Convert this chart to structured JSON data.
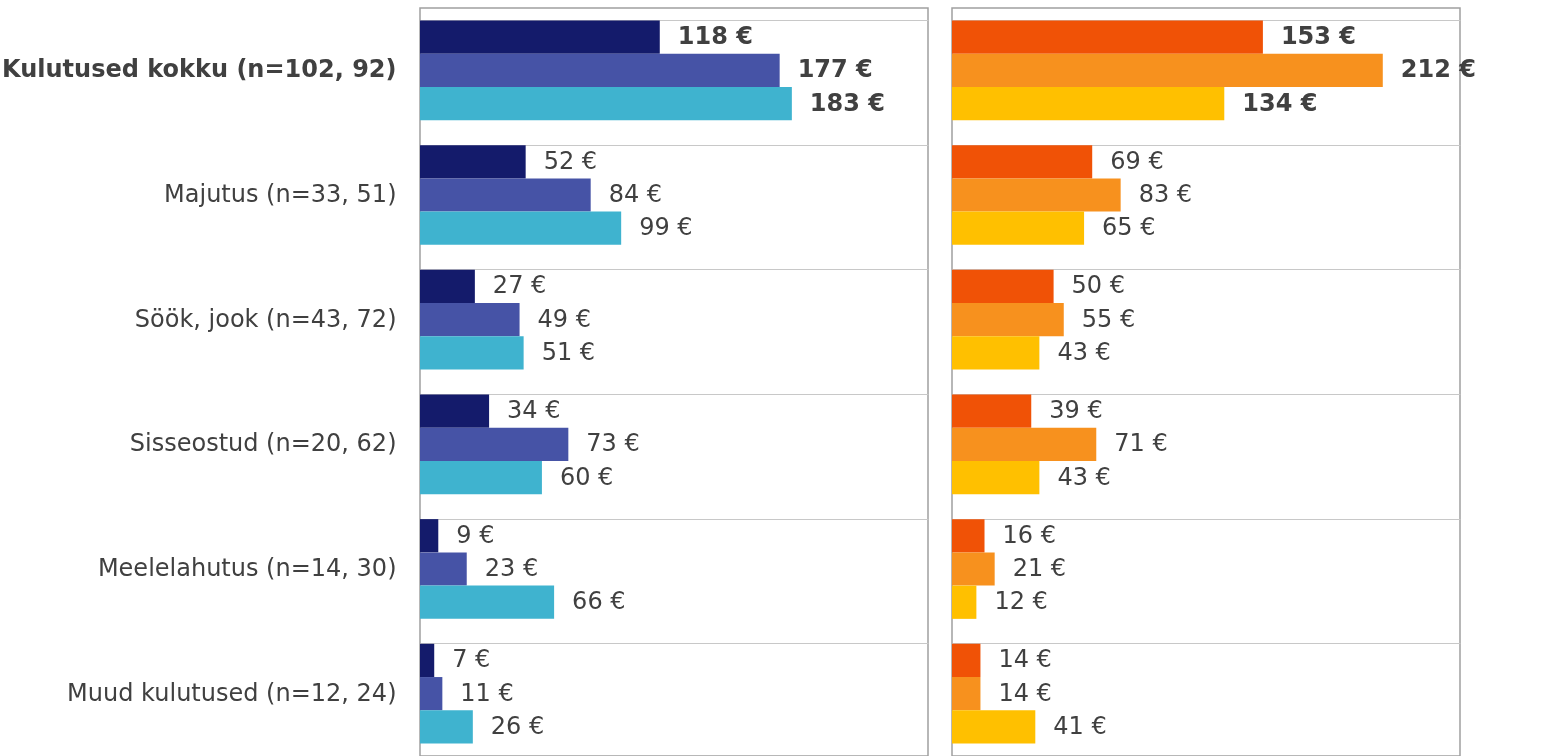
{
  "chart_data": [
    {
      "type": "bar",
      "orientation": "horizontal",
      "categories": [
        "Kulutused kokku (n=102, 92)",
        "Majutus (n=33, 51)",
        "Söök, jook (n=43, 72)",
        "Sisseostud (n=20, 62)",
        "Meelelahutus (n=14, 30)",
        "Muud kulutused (n=12, 24)"
      ],
      "xlim": [
        0,
        250
      ],
      "tick_labels": "y",
      "grid": "y",
      "legend": false,
      "series": [
        {
          "color": "#141b6b",
          "values": [
            118,
            52,
            27,
            34,
            9,
            7
          ],
          "value_labels": [
            "118 €",
            "52 €",
            "27 €",
            "34 €",
            "9 €",
            "7 €"
          ]
        },
        {
          "color": "#4653a6",
          "values": [
            177,
            84,
            49,
            73,
            23,
            11
          ],
          "value_labels": [
            "177 €",
            "84 €",
            "49 €",
            "73 €",
            "23 €",
            "11 €"
          ]
        },
        {
          "color": "#3fb3cf",
          "values": [
            183,
            99,
            51,
            60,
            66,
            26
          ],
          "value_labels": [
            "183 €",
            "99 €",
            "51 €",
            "60 €",
            "66 €",
            "26 €"
          ]
        }
      ]
    },
    {
      "type": "bar",
      "orientation": "horizontal",
      "xlim": [
        0,
        250
      ],
      "tick_labels": false,
      "grid": "y",
      "legend": false,
      "series": [
        {
          "color": "#f05206",
          "values": [
            153,
            69,
            50,
            39,
            16,
            14
          ],
          "value_labels": [
            "153 €",
            "69 €",
            "50 €",
            "39 €",
            "16 €",
            "14 €"
          ]
        },
        {
          "color": "#f7911e",
          "values": [
            212,
            83,
            55,
            71,
            21,
            14
          ],
          "value_labels": [
            "212 €",
            "83 €",
            "55 €",
            "71 €",
            "21 €",
            "14 €"
          ]
        },
        {
          "color": "#ffc000",
          "values": [
            134,
            65,
            43,
            43,
            12,
            41
          ],
          "value_labels": [
            "134 €",
            "65 €",
            "43 €",
            "43 €",
            "12 €",
            "41 €"
          ]
        }
      ]
    }
  ]
}
